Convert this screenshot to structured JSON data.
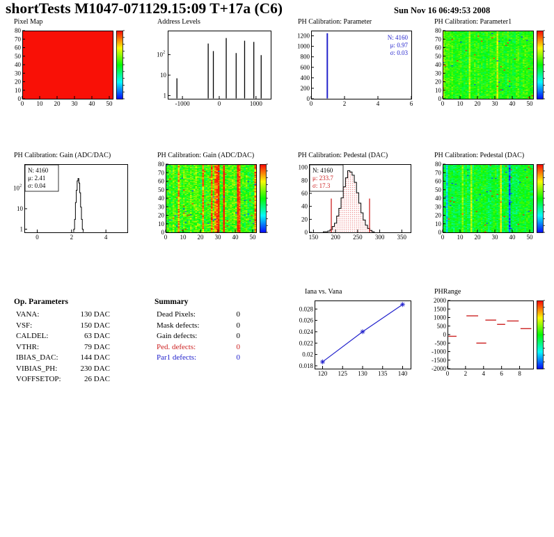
{
  "header": {
    "title": "shortTests M1047-071129.15:09 T+17a (C6)",
    "date": "Sun Nov 16 06:49:53 2008"
  },
  "op_parameters": {
    "title": "Op. Parameters",
    "rows": [
      {
        "label": "VANA:",
        "value": "130 DAC"
      },
      {
        "label": "VSF:",
        "value": "150 DAC"
      },
      {
        "label": "CALDEL:",
        "value": "63 DAC"
      },
      {
        "label": "VTHR:",
        "value": "79 DAC"
      },
      {
        "label": "IBIAS_DAC:",
        "value": "144 DAC"
      },
      {
        "label": "VIBIAS_PH:",
        "value": "230 DAC"
      },
      {
        "label": "VOFFSETOP:",
        "value": "26 DAC"
      }
    ]
  },
  "summary": {
    "title": "Summary",
    "rows": [
      {
        "label": "Dead Pixels:",
        "value": "0",
        "color": "#000000"
      },
      {
        "label": "Mask defects:",
        "value": "0",
        "color": "#000000"
      },
      {
        "label": "Gain defects:",
        "value": "0",
        "color": "#000000"
      },
      {
        "label": "Ped. defects:",
        "value": "0",
        "color": "#cc2020"
      },
      {
        "label": "Par1 defects:",
        "value": "0",
        "color": "#2020cc"
      }
    ]
  },
  "colors": {
    "accent_red": "#cc2020",
    "accent_blue": "#2020cc",
    "map_high": "#ff1400"
  },
  "chart_data": [
    {
      "id": "pixel_map",
      "type": "heatmap_uniform",
      "title": "Pixel Map",
      "xlim": [
        0,
        52
      ],
      "ylim": [
        0,
        80
      ],
      "xticks": [
        0,
        10,
        20,
        30,
        40,
        50
      ],
      "yticks": [
        0,
        10,
        20,
        30,
        40,
        50,
        60,
        70,
        80
      ],
      "uniform_value": 0.99,
      "colorbar": true
    },
    {
      "id": "address_levels",
      "type": "hist_spikes",
      "title": "Address Levels",
      "xlim": [
        -1400,
        1400
      ],
      "ylim": [
        0.7,
        1500
      ],
      "ylog": true,
      "xticks": [
        -1000,
        0,
        1000
      ],
      "yticks": [
        1,
        10,
        100
      ],
      "color": "#000000",
      "lw": 1.3,
      "spikes": [
        [
          -1150,
          7
        ],
        [
          -300,
          350
        ],
        [
          -160,
          150
        ],
        [
          190,
          650
        ],
        [
          460,
          120
        ],
        [
          690,
          480
        ],
        [
          940,
          420
        ],
        [
          1140,
          95
        ]
      ]
    },
    {
      "id": "ph_parameter",
      "type": "hist_spikes",
      "title": "PH Calibration: Parameter",
      "xlim": [
        0,
        6
      ],
      "ylim": [
        0,
        1300
      ],
      "xticks": [
        0,
        2,
        4,
        6
      ],
      "yticks": [
        0,
        200,
        400,
        600,
        800,
        1000,
        1200
      ],
      "color": "#2222cc",
      "lw": 2,
      "spikes": [
        [
          0.97,
          1250
        ]
      ],
      "stats": {
        "pos": "tr",
        "lines": [
          {
            "t": "N: 4160",
            "c": "#2222cc"
          },
          {
            "t": "μ: 0.97",
            "c": "#2222cc"
          },
          {
            "t": "σ: 0.03",
            "c": "#2222cc"
          }
        ]
      }
    },
    {
      "id": "ph_parameter1_map",
      "type": "heatmap",
      "title": "PH Calibration: Parameter1",
      "xlim": [
        0,
        52
      ],
      "ylim": [
        0,
        80
      ],
      "xticks": [
        0,
        10,
        20,
        30,
        40,
        50
      ],
      "yticks": [
        0,
        10,
        20,
        30,
        40,
        50,
        60,
        70,
        80
      ],
      "seed": 7,
      "base": 0.52,
      "noise": 0.09,
      "streaks": {
        "hi_prob": 0.1,
        "hi": 0.24,
        "lo_prob": 0.02,
        "lo": -0.22
      },
      "colorbar": true
    },
    {
      "id": "gain_hist",
      "type": "hist_steps",
      "title": "PH Calibration: Gain (ADC/DAC)",
      "xlim": [
        -0.75,
        5.25
      ],
      "ylim": [
        0.7,
        1500
      ],
      "ylog": true,
      "xticks": [
        0,
        2,
        4
      ],
      "yticks": [
        1,
        10,
        100
      ],
      "bin_width": 0.05,
      "color": "#000000",
      "bins": [
        [
          2.15,
          1
        ],
        [
          2.2,
          3
        ],
        [
          2.25,
          20
        ],
        [
          2.3,
          80
        ],
        [
          2.35,
          230
        ],
        [
          2.4,
          300
        ],
        [
          2.45,
          180
        ],
        [
          2.5,
          60
        ],
        [
          2.55,
          12
        ],
        [
          2.6,
          3
        ],
        [
          2.65,
          1
        ]
      ],
      "stats": {
        "pos": "tl",
        "lines": [
          {
            "t": "N: 4160",
            "c": "#000000"
          },
          {
            "t": "μ: 2.41",
            "c": "#000000"
          },
          {
            "t": "σ: 0.04",
            "c": "#000000"
          }
        ]
      }
    },
    {
      "id": "gain_map",
      "type": "heatmap",
      "title": "PH Calibration: Gain (ADC/DAC)",
      "xlim": [
        0,
        52
      ],
      "ylim": [
        0,
        80
      ],
      "xticks": [
        0,
        10,
        20,
        30,
        40,
        50
      ],
      "yticks": [
        0,
        10,
        20,
        30,
        40,
        50,
        60,
        70,
        80
      ],
      "seed": 13,
      "base": 0.55,
      "noise": 0.13,
      "streaks": {
        "hi_prob": 0.17,
        "hi": 0.34,
        "lo_prob": 0.04,
        "lo": -0.3
      },
      "colorbar": true
    },
    {
      "id": "pedestal_hist",
      "type": "hist_bars",
      "title": "PH Calibration: Pedestal (DAC)",
      "xlim": [
        140,
        370
      ],
      "ylim": [
        0,
        105
      ],
      "xticks": [
        150,
        200,
        250,
        300,
        350
      ],
      "yticks": [
        0,
        20,
        40,
        60,
        80,
        100
      ],
      "bin_width": 5,
      "line_color": "#000000",
      "fill_color": "#e04040",
      "red_lines": [
        190.4,
        277.0
      ],
      "red_line_top": 52,
      "bins": [
        [
          175,
          1
        ],
        [
          180,
          1
        ],
        [
          185,
          2
        ],
        [
          190,
          4
        ],
        [
          195,
          9
        ],
        [
          200,
          14
        ],
        [
          205,
          25
        ],
        [
          210,
          37
        ],
        [
          215,
          53
        ],
        [
          220,
          70
        ],
        [
          225,
          84
        ],
        [
          230,
          95
        ],
        [
          235,
          93
        ],
        [
          240,
          88
        ],
        [
          245,
          77
        ],
        [
          250,
          61
        ],
        [
          255,
          45
        ],
        [
          260,
          30
        ],
        [
          265,
          19
        ],
        [
          270,
          11
        ],
        [
          275,
          6
        ],
        [
          280,
          3
        ],
        [
          285,
          1
        ]
      ],
      "stats": {
        "pos": "tl",
        "lines": [
          {
            "t": "N: 4160",
            "c": "#000000"
          },
          {
            "t": "μ: 233.7",
            "c": "#cc2020"
          },
          {
            "t": "σ: 17.3",
            "c": "#cc2020"
          }
        ]
      }
    },
    {
      "id": "pedestal_map",
      "type": "heatmap",
      "title": "PH Calibration: Pedestal (DAC)",
      "xlim": [
        0,
        52
      ],
      "ylim": [
        0,
        80
      ],
      "xticks": [
        0,
        10,
        20,
        30,
        40,
        50
      ],
      "yticks": [
        0,
        10,
        20,
        30,
        40,
        50,
        60,
        70,
        80
      ],
      "seed": 29,
      "base": 0.47,
      "noise": 0.09,
      "streaks": {
        "hi_prob": 0.05,
        "hi": 0.2,
        "lo_prob": 0.07,
        "lo": -0.3
      },
      "colorbar": true
    },
    {
      "id": "iana_vana",
      "type": "line",
      "title": "Iana vs. Vana",
      "xlim": [
        118,
        142
      ],
      "ylim": [
        0.0175,
        0.0295
      ],
      "xticks": [
        120,
        125,
        130,
        135,
        140
      ],
      "yticks": [
        0.018,
        0.02,
        0.022,
        0.024,
        0.026,
        0.028
      ],
      "ylabels": [
        "0.018",
        "0.02",
        "0.022",
        "0.024",
        "0.026",
        "0.028"
      ],
      "color": "#2020cc",
      "marker": "star",
      "points": [
        [
          120,
          0.0187
        ],
        [
          130,
          0.024
        ],
        [
          140,
          0.0288
        ]
      ]
    },
    {
      "id": "phrange",
      "type": "segments",
      "title": "PHRange",
      "xlim": [
        0,
        9.5
      ],
      "ylim": [
        -2000,
        2000
      ],
      "xticks": [
        0,
        2,
        4,
        6,
        8
      ],
      "yticks": [
        -2000,
        -1500,
        -1000,
        -500,
        0,
        500,
        1000,
        1500,
        2000
      ],
      "color": "#cc2020",
      "colorbar": true,
      "segments": [
        [
          2.1,
          3.4,
          1100
        ],
        [
          4.2,
          5.4,
          850
        ],
        [
          5.5,
          6.4,
          600
        ],
        [
          6.6,
          7.9,
          800
        ],
        [
          0.1,
          1.0,
          -100
        ],
        [
          3.2,
          4.3,
          -500
        ],
        [
          8.1,
          9.3,
          350
        ]
      ]
    }
  ]
}
